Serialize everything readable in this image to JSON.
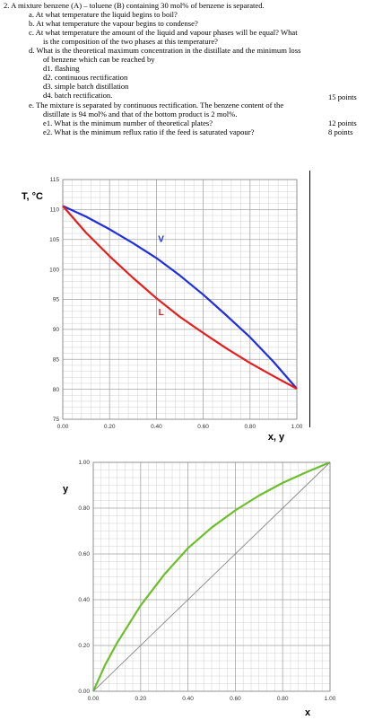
{
  "problem": {
    "intro": "2.  A mixture benzene (A) – toluene (B) containing 30 mol% of benzene is separated.",
    "a": "a.   At what temperature the liquid begins to boil?",
    "b": "b.   At what temperature the vapour begins to condense?",
    "c1": "c.   At what temperature the amount of the liquid and vapour phases will be equal? What",
    "c2": "is the composition of the two phases at this temperature?",
    "d1": "d.   What is the theoretical maximum concentration in the distillate and the minimum loss",
    "d2": "of benzene which can be reached by",
    "d_items": [
      "d1. flashing",
      "d2. continuous rectification",
      "d3. simple batch distillation",
      "d4. batch rectification."
    ],
    "d_points": "15 points",
    "e1": "e.   The mixture is separated by continuous rectification. The benzene content of the",
    "e2": "distillate is 94 mol% and that of the bottom product is 2 mol%.",
    "e_q1": "e1.  What is the minimum number of theoretical plates?",
    "e_q1_points": "12 points",
    "e_q2": "e2. What is the minimum reflux ratio if the feed is saturated vapour?",
    "e_q2_points": "8 points"
  },
  "chart_data": [
    {
      "type": "line",
      "ylabel": "T, °C",
      "xlabel": "x, y",
      "xlim": [
        0,
        1
      ],
      "ylim": [
        75,
        115
      ],
      "xticks": [
        "0.00",
        "0.20",
        "0.40",
        "0.60",
        "0.80",
        "1.00"
      ],
      "yticks": [
        "75",
        "80",
        "85",
        "90",
        "95",
        "100",
        "105",
        "110",
        "115"
      ],
      "grid": true,
      "series": [
        {
          "name": "V",
          "color": "#1f2ee0",
          "x": [
            0,
            0.1,
            0.2,
            0.3,
            0.4,
            0.5,
            0.6,
            0.7,
            0.8,
            0.9,
            1.0
          ],
          "y": [
            110.6,
            108.8,
            106.7,
            104.4,
            101.9,
            99.0,
            95.8,
            92.3,
            88.7,
            84.6,
            80.1
          ]
        },
        {
          "name": "L",
          "color": "#e81c1c",
          "x": [
            0,
            0.1,
            0.2,
            0.3,
            0.4,
            0.5,
            0.6,
            0.7,
            0.8,
            0.9,
            1.0
          ],
          "y": [
            110.6,
            106.1,
            102.2,
            98.6,
            95.2,
            92.1,
            89.4,
            86.8,
            84.4,
            82.2,
            80.1
          ]
        }
      ]
    },
    {
      "type": "line",
      "ylabel": "y",
      "xlabel": "x",
      "xlim": [
        0,
        1
      ],
      "ylim": [
        0,
        1
      ],
      "xticks": [
        "0.00",
        "0.20",
        "0.40",
        "0.60",
        "0.80",
        "1.00"
      ],
      "yticks": [
        "0.00",
        "0.20",
        "0.40",
        "0.60",
        "0.80",
        "1.00"
      ],
      "grid": true,
      "series": [
        {
          "name": "",
          "color": "#6cbf2a",
          "x": [
            0,
            0.05,
            0.1,
            0.2,
            0.3,
            0.4,
            0.5,
            0.6,
            0.7,
            0.8,
            0.9,
            1.0
          ],
          "y": [
            0,
            0.115,
            0.21,
            0.375,
            0.51,
            0.625,
            0.715,
            0.79,
            0.855,
            0.91,
            0.957,
            1.0
          ]
        },
        {
          "name": "",
          "color": "#888888",
          "x": [
            0,
            1
          ],
          "y": [
            0,
            1
          ]
        }
      ]
    }
  ]
}
